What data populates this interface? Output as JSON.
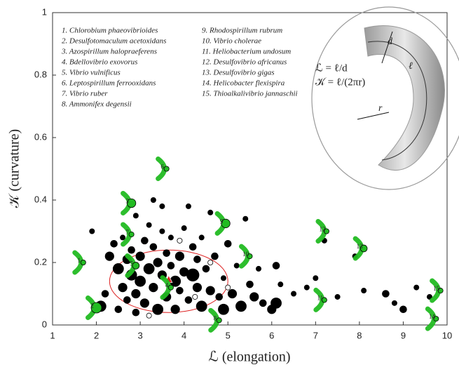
{
  "chart_data": {
    "type": "scatter",
    "xlabel": "ℒ (elongation)",
    "ylabel": "𝒦 (curvature)",
    "xlim": [
      1,
      10
    ],
    "ylim": [
      0,
      1
    ],
    "xticks": [
      1,
      2,
      3,
      4,
      5,
      6,
      7,
      8,
      9,
      10
    ],
    "yticks": [
      0,
      0.2,
      0.4,
      0.6,
      0.8,
      1
    ],
    "points": {
      "color": "#000000",
      "x": [
        1.9,
        2.1,
        2.2,
        2.3,
        2.4,
        2.5,
        2.5,
        2.6,
        2.6,
        2.7,
        2.7,
        2.8,
        2.8,
        2.9,
        2.9,
        3.0,
        3.0,
        3.1,
        3.1,
        3.2,
        3.2,
        3.3,
        3.3,
        3.4,
        3.4,
        3.5,
        3.5,
        3.6,
        3.6,
        3.7,
        3.7,
        3.8,
        3.8,
        3.9,
        3.9,
        4.0,
        4.0,
        4.1,
        4.2,
        4.2,
        4.3,
        4.3,
        4.4,
        4.4,
        4.5,
        4.6,
        4.6,
        4.7,
        4.8,
        4.9,
        4.9,
        5.0,
        5.1,
        5.2,
        5.3,
        5.5,
        5.6,
        5.7,
        5.8,
        6.0,
        6.1,
        6.1,
        6.2,
        6.5,
        6.8,
        7.0,
        7.2,
        7.5,
        7.9,
        8.1,
        8.6,
        8.8,
        9.0,
        9.3,
        9.6,
        4.1,
        3.3,
        3.5,
        2.9,
        5.4
      ],
      "y": [
        0.3,
        0.06,
        0.1,
        0.22,
        0.26,
        0.18,
        0.05,
        0.12,
        0.28,
        0.21,
        0.08,
        0.16,
        0.24,
        0.1,
        0.04,
        0.22,
        0.14,
        0.27,
        0.07,
        0.18,
        0.32,
        0.12,
        0.25,
        0.2,
        0.05,
        0.16,
        0.3,
        0.23,
        0.09,
        0.19,
        0.28,
        0.14,
        0.05,
        0.22,
        0.11,
        0.17,
        0.31,
        0.08,
        0.16,
        0.25,
        0.12,
        0.21,
        0.06,
        0.28,
        0.18,
        0.11,
        0.36,
        0.22,
        0.09,
        0.05,
        0.15,
        0.26,
        0.1,
        0.19,
        0.06,
        0.13,
        0.09,
        0.18,
        0.07,
        0.05,
        0.07,
        0.19,
        0.13,
        0.1,
        0.12,
        0.15,
        0.27,
        0.09,
        0.22,
        0.11,
        0.1,
        0.07,
        0.05,
        0.12,
        0.09,
        0.38,
        0.4,
        0.38,
        0.35,
        0.34
      ],
      "sizes": [
        2,
        5,
        3,
        4,
        3,
        5,
        3,
        4,
        2,
        4,
        3,
        5,
        3,
        4,
        3,
        4,
        5,
        3,
        4,
        5,
        2,
        4,
        3,
        4,
        5,
        4,
        2,
        3,
        4,
        3,
        2,
        5,
        4,
        4,
        3,
        4,
        2,
        3,
        6,
        3,
        4,
        3,
        5,
        2,
        3,
        4,
        2,
        3,
        3,
        5,
        2,
        3,
        4,
        2,
        5,
        3,
        4,
        2,
        3,
        4,
        5,
        3,
        2,
        2,
        2,
        2,
        2,
        2,
        2,
        2,
        3,
        2,
        3,
        2,
        2,
        2,
        2,
        2,
        2,
        2
      ]
    },
    "open_points": {
      "color": "#ffffff",
      "x": [
        3.9,
        4.6,
        5.0,
        4.25,
        3.2
      ],
      "y": [
        0.27,
        0.2,
        0.12,
        0.09,
        0.03
      ],
      "sizes": [
        2,
        2,
        2,
        2,
        2
      ]
    },
    "species": {
      "color": "#22bb22",
      "labels": [
        "1",
        "2",
        "3",
        "4",
        "5",
        "6",
        "7",
        "8",
        "9",
        "10",
        "11",
        "12",
        "13",
        "14",
        "15"
      ],
      "x": [
        1.7,
        2.0,
        2.8,
        3.7,
        2.9,
        3.6,
        2.8,
        4.8,
        4.95,
        5.5,
        7.2,
        7.25,
        8.1,
        9.75,
        9.85
      ],
      "y": [
        0.2,
        0.055,
        0.39,
        0.12,
        0.19,
        0.5,
        0.29,
        0.015,
        0.325,
        0.22,
        0.08,
        0.3,
        0.245,
        0.02,
        0.11
      ],
      "sizes": [
        2,
        5,
        4,
        2,
        3,
        2,
        2,
        2,
        4,
        2,
        2,
        2,
        3,
        2,
        2
      ]
    },
    "mean": {
      "color": "#dd2222",
      "x": 3.65,
      "y": 0.145
    },
    "ellipse": {
      "color": "#dd2222",
      "cx": 3.65,
      "cy": 0.14,
      "rx": 1.35,
      "ry": 0.1
    },
    "legend": [
      "1. Chlorobium phaeovibrioides",
      "2. Desulfotomaculum acetoxidans",
      "3. Azospirillum halopraeferens",
      "4. Bdellovibrio exovorus",
      "5. Vibrio vulnificus",
      "6. Leptospirillum ferrooxidans",
      "7. Vibrio ruber",
      "8. Ammonifex degensii",
      "9. Rhodospirillum rubrum",
      "10. Vibrio cholerae",
      "11. Heliobacterium undosum",
      "12. Desulfovibrio africanus",
      "13. Desulfovibrio gigas",
      "14. Helicobacter flexispira",
      "15. Thioalkalivibrio jannaschii"
    ],
    "inset": {
      "formula_l": "ℒ = ℓ/d",
      "formula_k": "𝒦 = ℓ/(2πr)",
      "d": "d",
      "l": "ℓ",
      "r": "r"
    }
  }
}
